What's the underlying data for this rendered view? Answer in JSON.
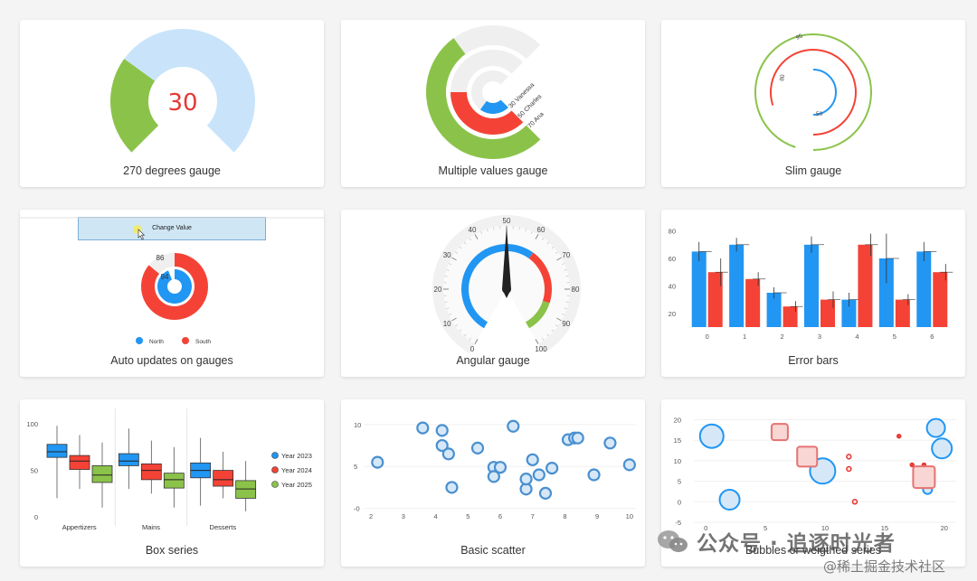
{
  "cards": {
    "gauge270": {
      "caption": "270 degrees gauge",
      "value_text": "30",
      "value": 30
    },
    "multi": {
      "caption": "Multiple values gauge",
      "labels": [
        "30 Vanessa",
        "50 Charles",
        "70 Ana"
      ],
      "values": [
        30,
        50,
        70
      ]
    },
    "slim": {
      "caption": "Slim gauge",
      "labels": [
        "95",
        "80",
        "50"
      ],
      "values": [
        95,
        80,
        50
      ]
    },
    "auto": {
      "caption": "Auto updates on gauges",
      "button_label": "Change Value",
      "labels": [
        "86",
        "94"
      ],
      "values": [
        86,
        94
      ],
      "legend": [
        "North",
        "South"
      ]
    },
    "angular": {
      "caption": "Angular gauge",
      "ticks": [
        "0",
        "10",
        "20",
        "30",
        "40",
        "50",
        "60",
        "70",
        "80",
        "90",
        "100"
      ],
      "value": 50
    },
    "errorbars": {
      "caption": "Error bars",
      "yticks": [
        "20",
        "40",
        "60",
        "80"
      ],
      "xticks": [
        "0",
        "1",
        "2",
        "3",
        "4",
        "5",
        "6"
      ]
    },
    "box": {
      "caption": "Box series",
      "yticks": [
        "100",
        "50",
        "0"
      ],
      "categories": [
        "Appertizers",
        "Mains",
        "Desserts"
      ],
      "legend": [
        "Year 2023",
        "Year 2024",
        "Year 2025"
      ]
    },
    "scatter": {
      "caption": "Basic scatter",
      "yticks": [
        "10",
        "5",
        "-0"
      ],
      "xticks": [
        "2",
        "3",
        "4",
        "5",
        "6",
        "7",
        "8",
        "9",
        "10"
      ]
    },
    "bubbles": {
      "caption": "Bubbles or weigthed series",
      "yticks": [
        "20",
        "15",
        "10",
        "5",
        "0",
        "-5"
      ],
      "xticks": [
        "0",
        "5",
        "10",
        "15",
        "20"
      ]
    }
  },
  "watermark": {
    "line1": "公众号 · 追逐时光者",
    "line2": "@稀土掘金技术社区"
  },
  "colors": {
    "blue": "#2196f3",
    "red": "#f44336",
    "green": "#8bc34a",
    "lightblue": "#c9e4fa",
    "track": "#efefef",
    "scatter": "#4a90d0"
  },
  "chart_data": [
    {
      "type": "bar",
      "name": "Error bars",
      "categories": [
        "0",
        "1",
        "2",
        "3",
        "4",
        "5",
        "6"
      ],
      "series": [
        {
          "values": [
            65,
            70,
            35,
            70,
            30,
            60,
            65
          ]
        },
        {
          "values": [
            50,
            45,
            25,
            30,
            70,
            30,
            50
          ]
        }
      ],
      "errors": [
        [
          7,
          5,
          4,
          6,
          5,
          18,
          7
        ],
        [
          10,
          5,
          4,
          6,
          8,
          4,
          6
        ]
      ],
      "ylim": [
        10,
        85
      ]
    },
    {
      "type": "box",
      "name": "Box series",
      "categories": [
        "Appertizers",
        "Mains",
        "Desserts"
      ],
      "series": [
        {
          "name": "Year 2023",
          "boxes": [
            [
              20,
              64,
              70,
              78,
              98
            ],
            [
              30,
              55,
              60,
              68,
              95
            ],
            [
              12,
              42,
              50,
              58,
              85
            ]
          ]
        },
        {
          "name": "Year 2024",
          "boxes": [
            [
              30,
              51,
              60,
              66,
              88
            ],
            [
              25,
              40,
              50,
              57,
              82
            ],
            [
              20,
              33,
              40,
              50,
              70
            ]
          ]
        },
        {
          "name": "Year 2025",
          "boxes": [
            [
              10,
              37,
              45,
              55,
              80
            ],
            [
              10,
              31,
              40,
              47,
              75
            ],
            [
              6,
              20,
              30,
              39,
              60
            ]
          ]
        }
      ],
      "ylim": [
        0,
        105
      ]
    },
    {
      "type": "scatter",
      "name": "Basic scatter",
      "x": [
        2.2,
        3.6,
        4.2,
        4.2,
        4.4,
        4.5,
        5.3,
        5.8,
        5.8,
        6.0,
        6.4,
        6.8,
        6.8,
        7.0,
        7.2,
        7.4,
        7.6,
        8.1,
        8.3,
        8.4,
        8.9,
        9.4,
        10.0
      ],
      "y": [
        5.5,
        9.6,
        9.3,
        7.5,
        6.5,
        2.5,
        7.2,
        4.9,
        3.8,
        4.9,
        9.8,
        2.3,
        3.5,
        5.8,
        4.0,
        1.8,
        4.8,
        8.2,
        8.4,
        8.4,
        4.0,
        7.8,
        5.2
      ],
      "xlim": [
        1.8,
        10.2
      ],
      "ylim": [
        -0.8,
        11.5
      ]
    },
    {
      "type": "scatter",
      "name": "Bubbles or weigthed series",
      "series": [
        {
          "x": [
            0.5,
            2.0,
            9.8,
            19.3,
            19.8,
            18.6
          ],
          "y": [
            16,
            0.5,
            7.5,
            18,
            13,
            3
          ],
          "w": [
            1.0,
            0.8,
            1.1,
            0.7,
            0.8,
            0.2
          ]
        },
        {
          "x": [
            6.2,
            8.5,
            12.0,
            12.0,
            16.2,
            18.3,
            17.3,
            18.3,
            12.5
          ],
          "y": [
            17,
            11,
            11,
            8,
            16,
            9,
            9,
            6,
            0
          ],
          "w": [
            0.7,
            0.9,
            0.3,
            0.3,
            0.2,
            0.2,
            0.2,
            1.0,
            0.3
          ]
        }
      ],
      "xlim": [
        -1,
        21
      ],
      "ylim": [
        -5,
        21
      ]
    }
  ]
}
